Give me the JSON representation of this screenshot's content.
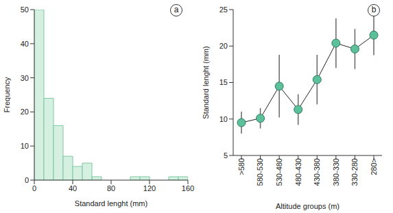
{
  "chart_data": [
    {
      "type": "histogram",
      "title": "a",
      "bins": [
        0,
        10,
        20,
        30,
        40,
        50,
        60,
        70,
        80,
        90,
        100,
        110,
        120,
        130,
        140,
        150,
        160
      ],
      "values": [
        50,
        24,
        16,
        7,
        4,
        5,
        1,
        0,
        0,
        0,
        1,
        1,
        0,
        0,
        1,
        1
      ],
      "color": "#d5efe0",
      "xlim": [
        0,
        160
      ],
      "xticks": [
        0,
        40,
        80,
        120,
        160
      ],
      "ylim": [
        0,
        50
      ],
      "yticks": [
        0,
        10,
        20,
        30,
        40,
        50
      ],
      "x_label": "Standard lenght (mm)",
      "y_label": "Frequency"
    },
    {
      "type": "line",
      "title": "b",
      "categories": [
        ">580",
        "580-530",
        "530-480",
        "480-430",
        "430-380",
        "380-330",
        "330-280",
        "280>"
      ],
      "values": [
        9.5,
        10.1,
        14.5,
        11.3,
        15.4,
        20.4,
        19.6,
        21.5
      ],
      "errors": [
        1.5,
        1.4,
        4.3,
        2.1,
        3.4,
        3.4,
        2.75,
        2.75
      ],
      "color": "#5cc09a",
      "marker": "circle",
      "ylim": [
        5,
        25
      ],
      "yticks": [
        5,
        10,
        15,
        20,
        25
      ],
      "x_label": "Altitude groups (m)",
      "y_label": "Standard lenght (mm)"
    }
  ]
}
